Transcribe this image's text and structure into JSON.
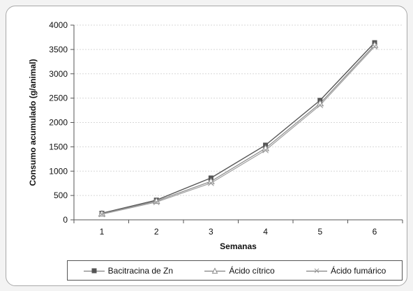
{
  "chart_data": {
    "type": "line",
    "title": "",
    "subtitle": "",
    "xlabel": "Semanas",
    "ylabel": "Consumo acumulado (g/animal)",
    "categories": [
      "1",
      "2",
      "3",
      "4",
      "5",
      "6"
    ],
    "x": [
      1,
      2,
      3,
      4,
      5,
      6
    ],
    "ylim": [
      0,
      4000
    ],
    "yticks": [
      0,
      500,
      1000,
      1500,
      2000,
      2500,
      3000,
      3500,
      4000
    ],
    "grid": true,
    "legend_position": "bottom",
    "series": [
      {
        "name": "Bacitracina de Zn",
        "values": [
          135,
          405,
          860,
          1535,
          2455,
          3640
        ],
        "marker": "square",
        "color": "#555555"
      },
      {
        "name": "Ácido cítrico",
        "values": [
          125,
          385,
          790,
          1470,
          2390,
          3590
        ],
        "marker": "triangle",
        "color": "#8a8a8a"
      },
      {
        "name": "Ácido fumárico",
        "values": [
          115,
          365,
          755,
          1430,
          2355,
          3560
        ],
        "marker": "x",
        "color": "#a0a0a0"
      }
    ]
  }
}
